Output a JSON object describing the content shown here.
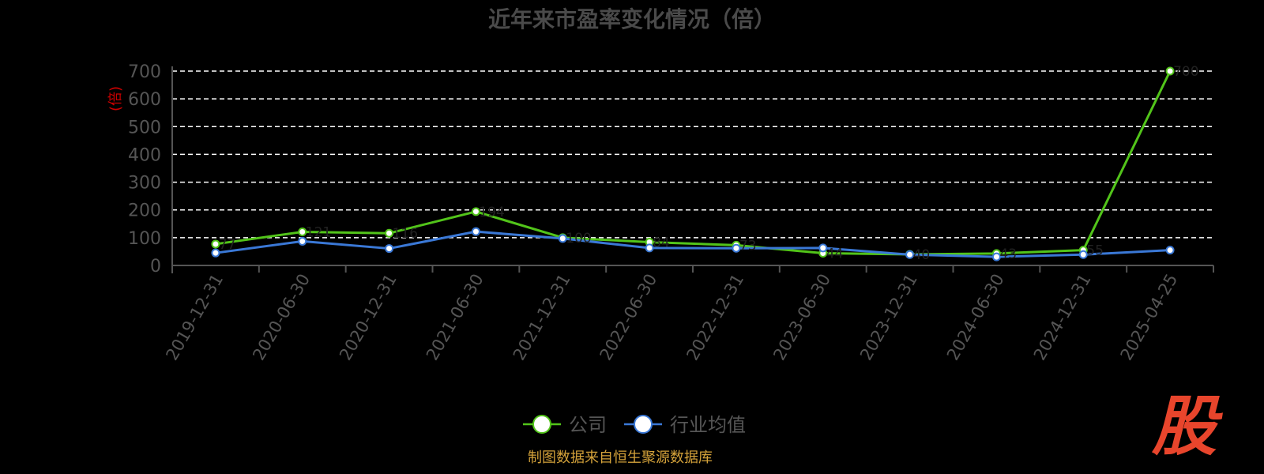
{
  "chart_data": {
    "type": "line",
    "title": "近年来市盈率变化情况（倍）",
    "ylabel": "(倍)",
    "ylim": [
      0,
      700
    ],
    "yticks": [
      0,
      100,
      200,
      300,
      400,
      500,
      600,
      700
    ],
    "grid": true,
    "legend_position": "bottom",
    "categories": [
      "2019-12-31",
      "2020-06-30",
      "2020-12-31",
      "2021-06-30",
      "2021-12-31",
      "2022-06-30",
      "2022-12-31",
      "2023-06-30",
      "2023-12-31",
      "2024-06-30",
      "2024-12-31",
      "2025-04-25"
    ],
    "series": [
      {
        "name": "公司",
        "color": "#52c41a",
        "values": [
          77,
          121,
          116,
          194,
          100,
          84,
          73,
          44,
          40,
          43,
          55,
          700
        ]
      },
      {
        "name": "行业均值",
        "color": "#3a78d6",
        "values": [
          45,
          87,
          61,
          122,
          97,
          63,
          62,
          63,
          39,
          31,
          39,
          55
        ]
      }
    ],
    "source": "制图数据来自恒生聚源数据库",
    "logo_text": "股"
  }
}
